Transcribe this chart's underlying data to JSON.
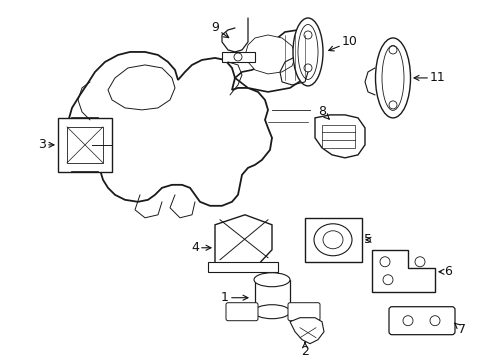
{
  "bg_color": "#ffffff",
  "line_color": "#1a1a1a",
  "label_color": "#111111",
  "label_fontsize": 9,
  "fig_width": 4.89,
  "fig_height": 3.6,
  "dpi": 100
}
